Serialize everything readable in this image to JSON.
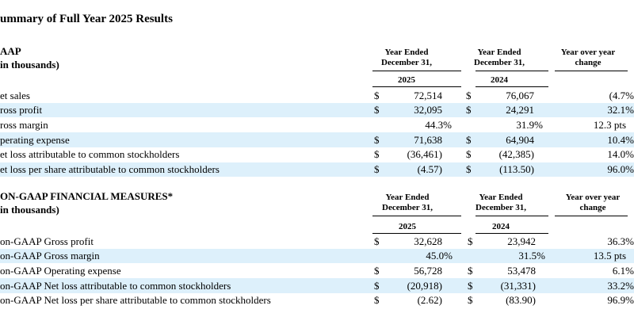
{
  "title": "ummary of Full Year 2025 Results",
  "sections": [
    {
      "title_lines": [
        "AAP",
        "in thousands)"
      ],
      "headers": [
        [
          "Year Ended",
          "December 31,"
        ],
        [
          "Year Ended",
          "December 31,"
        ],
        [
          "Year over year",
          "change"
        ]
      ],
      "years": [
        "2025",
        "2024"
      ],
      "rows": [
        {
          "label": "et sales",
          "cy_sign": "$",
          "cy": "72,514",
          "py_sign": "$",
          "py": "76,067",
          "change": "(4.7%"
        },
        {
          "label": "ross profit",
          "cy_sign": "$",
          "cy": "32,095",
          "py_sign": "$",
          "py": "24,291",
          "change": "32.1%"
        },
        {
          "label": "ross margin",
          "cy": "44.3%",
          "py": "31.9%",
          "change": "12.3 pts"
        },
        {
          "label": "perating expense",
          "cy_sign": "$",
          "cy": "71,638",
          "py_sign": "$",
          "py": "64,904",
          "change": "10.4%"
        },
        {
          "label": "et loss attributable to common stockholders",
          "cy_sign": "$",
          "cy": "(36,461)",
          "py_sign": "$",
          "py": "(42,385)",
          "change": "14.0%"
        },
        {
          "label": "et loss per share attributable to common stockholders",
          "cy_sign": "$",
          "cy": "(4.57)",
          "py_sign": "$",
          "py": "(113.50)",
          "change": "96.0%"
        }
      ]
    },
    {
      "title_lines": [
        "ON-GAAP FINANCIAL MEASURES*",
        "in thousands)"
      ],
      "headers": [
        [
          "Year Ended",
          "December 31,"
        ],
        [
          "Year Ended",
          "December 31,"
        ],
        [
          "Year over year",
          "change"
        ]
      ],
      "years": [
        "2025",
        "2024"
      ],
      "rows": [
        {
          "label": "on-GAAP Gross profit",
          "cy_sign": "$",
          "cy": "32,628",
          "py_sign": "$",
          "py": "23,942",
          "change": "36.3%"
        },
        {
          "label": "on-GAAP Gross margin",
          "cy": "45.0%",
          "py": "31.5%",
          "change": "13.5 pts"
        },
        {
          "label": "on-GAAP Operating expense",
          "cy_sign": "$",
          "cy": "56,728",
          "py_sign": "$",
          "py": "53,478",
          "change": "6.1%"
        },
        {
          "label": "on-GAAP Net loss attributable to common stockholders",
          "cy_sign": "$",
          "cy": "(20,918)",
          "py_sign": "$",
          "py": "(31,331)",
          "change": "33.2%"
        },
        {
          "label": "on-GAAP Net loss per share attributable to common stockholders",
          "cy_sign": "$",
          "cy": "(2.62)",
          "py_sign": "$",
          "py": "(83.90)",
          "change": "96.9%"
        }
      ]
    }
  ]
}
